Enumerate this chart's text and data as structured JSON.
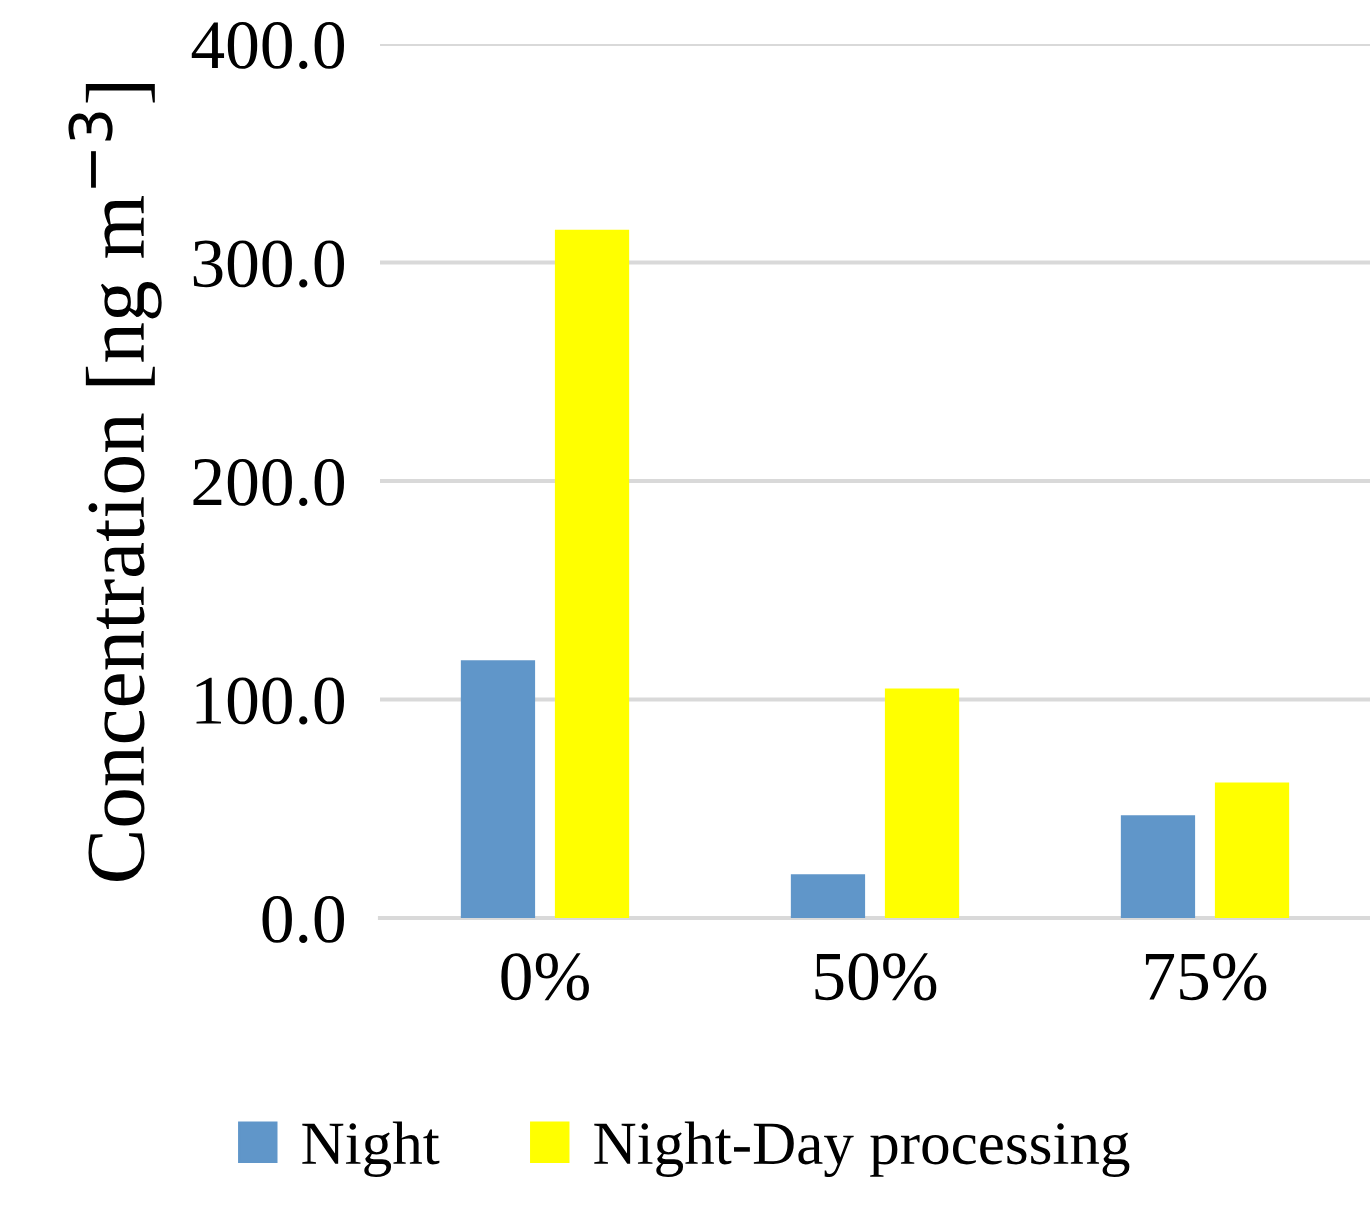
{
  "chart_data": {
    "type": "bar",
    "ylabel": "Concentration [ng m$^{−3}$]",
    "categories": [
      "0%",
      "50%",
      "75%"
    ],
    "series": [
      {
        "name": "Night",
        "color": "#6096c9",
        "values": [
          118,
          20,
          47
        ]
      },
      {
        "name": "Night-Day processing",
        "color": "#ffff00",
        "values": [
          315,
          105,
          62
        ]
      }
    ],
    "ylim": [
      0,
      400
    ],
    "yticks": [
      {
        "value": 0,
        "label": "0.0"
      },
      {
        "value": 100,
        "label": "100.0"
      },
      {
        "value": 200,
        "label": "200.0"
      },
      {
        "value": 300,
        "label": "300.0"
      },
      {
        "value": 400,
        "label": "400.0"
      }
    ],
    "grid": "y",
    "legend": "bottom"
  }
}
